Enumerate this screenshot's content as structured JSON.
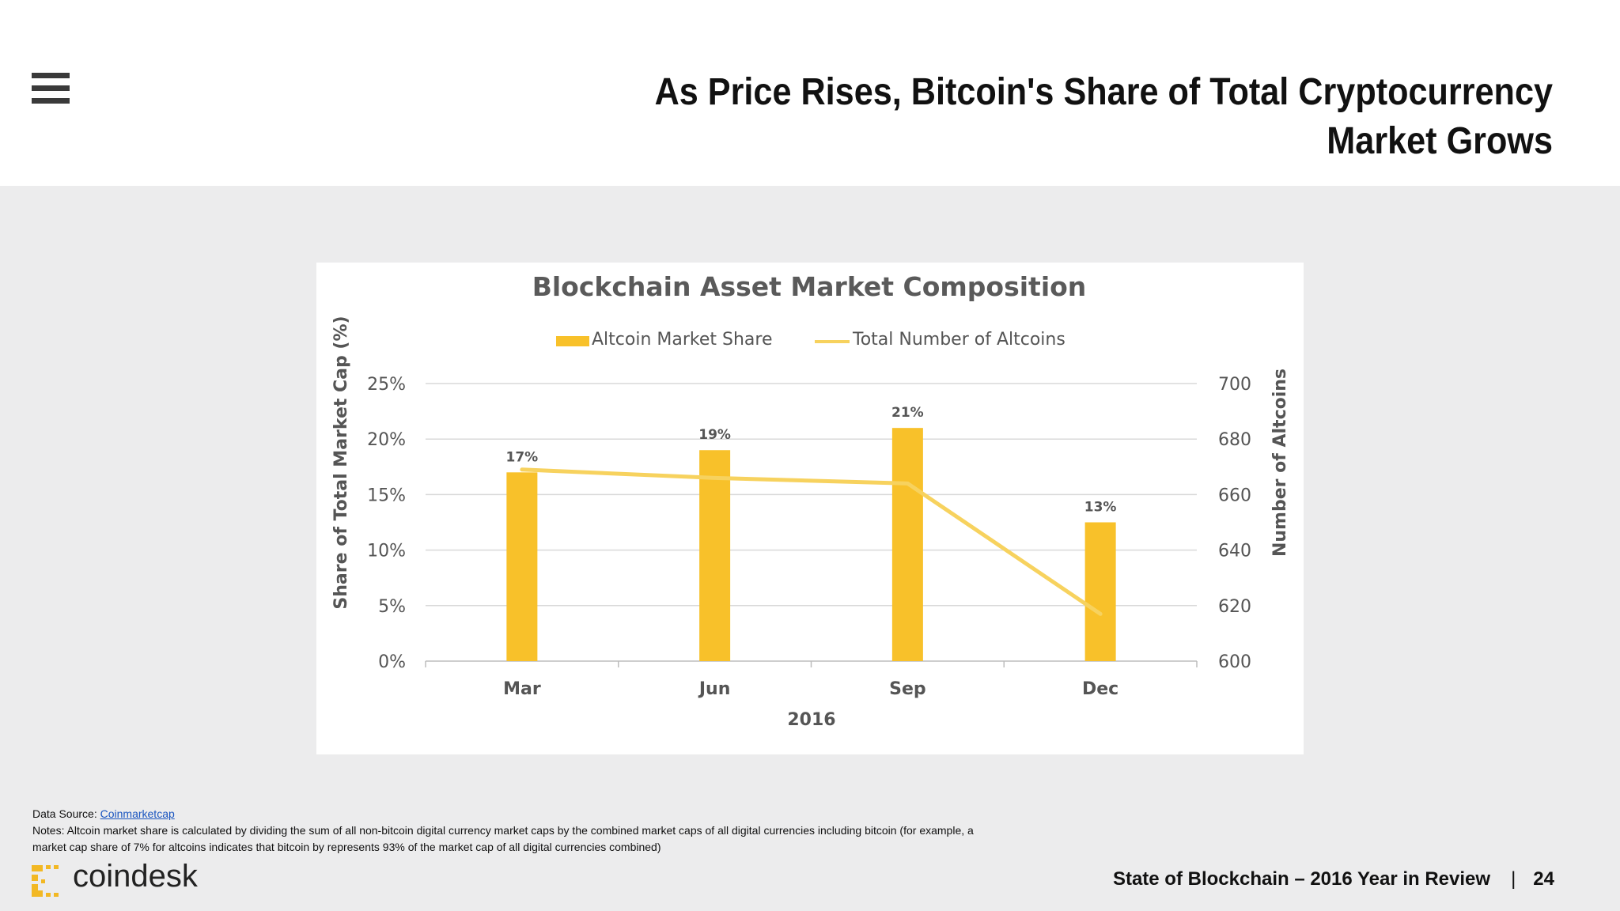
{
  "header": {
    "title_line1": "As Price Rises, Bitcoin's Share of Total Cryptocurrency",
    "title_line2": "Market Grows"
  },
  "chart_data": {
    "type": "bar",
    "title": "Blockchain Asset Market Composition",
    "categories": [
      "Mar",
      "Jun",
      "Sep",
      "Dec"
    ],
    "xlabel": "2016",
    "ylabel": "Share of Total Market Cap (%)",
    "y2label": "Number of Altcoins",
    "ylim": [
      0,
      25
    ],
    "y2lim": [
      600,
      700
    ],
    "yticks": [
      "0%",
      "5%",
      "10%",
      "15%",
      "20%",
      "25%"
    ],
    "y2ticks": [
      "600",
      "620",
      "640",
      "660",
      "680",
      "700"
    ],
    "grid": true,
    "legend": "top-center",
    "series": [
      {
        "name": "Altcoin Market Share",
        "type": "bar",
        "axis": "left",
        "color": "#f8c12a",
        "values": [
          17,
          19,
          21,
          12.5
        ],
        "labels": [
          "17%",
          "19%",
          "21%",
          "13%"
        ]
      },
      {
        "name": "Total Number of Altcoins",
        "type": "line",
        "axis": "right",
        "color": "#f7d25e",
        "values": [
          669,
          666,
          664,
          617
        ]
      }
    ]
  },
  "notes": {
    "source_prefix": "Data Source: ",
    "source_link": "Coinmarketcap",
    "line1": "Notes: Altcoin market share is calculated by dividing the sum of all non-bitcoin digital currency market caps by the combined market caps of all digital currencies including bitcoin (for example, a",
    "line2": "market cap share of 7% for altcoins indicates that bitcoin by represents 93% of the market cap of all digital currencies combined)"
  },
  "logo": {
    "text": "coindesk",
    "color": "#f2b824"
  },
  "footer": {
    "report": "State of Blockchain – 2016 Year in Review",
    "separator": "|",
    "page": "24"
  }
}
